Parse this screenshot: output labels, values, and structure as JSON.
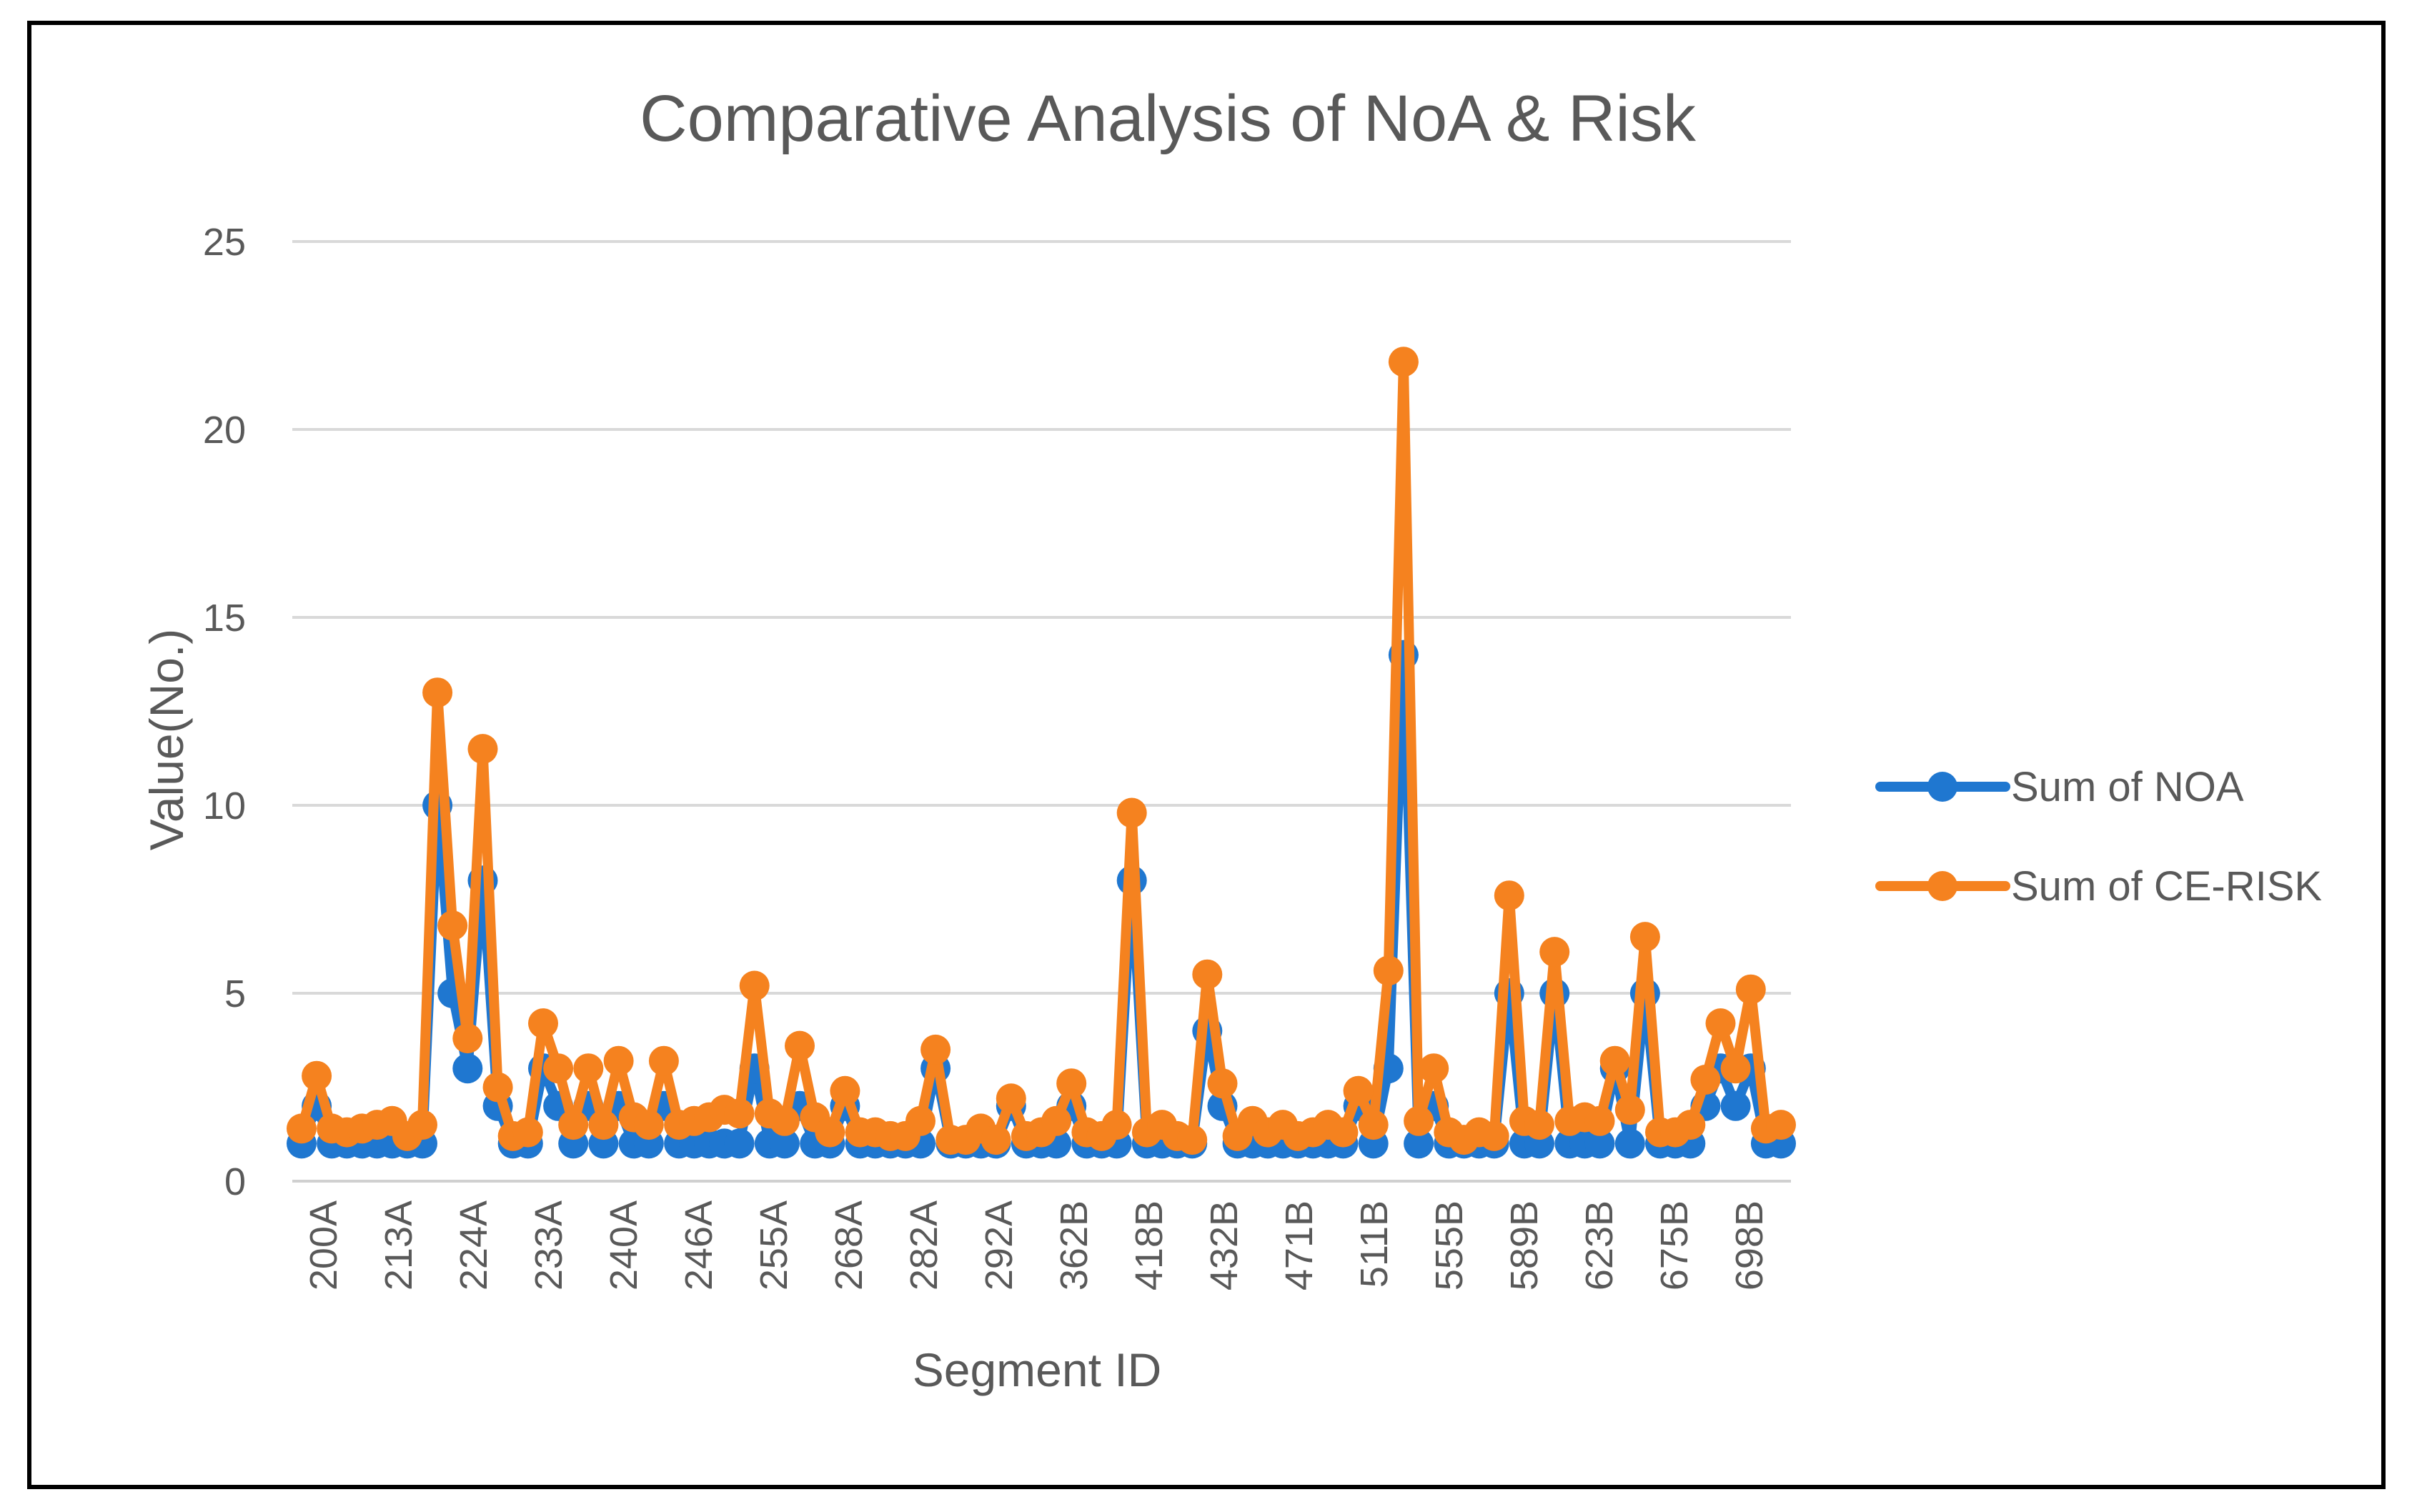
{
  "chart_data": {
    "type": "line",
    "title": "Comparative Analysis of NoA & Risk",
    "xlabel": "Segment ID",
    "ylabel": "Value(No.)",
    "ylim": [
      0,
      25
    ],
    "yticks": [
      0,
      5,
      10,
      15,
      20,
      25
    ],
    "grid": true,
    "legend_position": "right",
    "tick_labels": [
      "200A",
      "213A",
      "224A",
      "233A",
      "240A",
      "246A",
      "255A",
      "268A",
      "282A",
      "292A",
      "362B",
      "418B",
      "432B",
      "471B",
      "511B",
      "555B",
      "589B",
      "623B",
      "675B",
      "698B"
    ],
    "series": [
      {
        "name": "Sum of NOA",
        "color": "#1F77D0",
        "values": [
          1,
          2,
          1,
          1,
          1,
          1,
          1,
          1,
          1,
          10,
          5,
          3,
          8,
          2,
          1,
          1,
          3,
          2,
          1,
          2,
          1,
          2,
          1,
          1,
          2,
          1,
          1,
          1,
          1,
          1,
          3,
          1,
          1,
          2,
          1,
          1,
          2,
          1,
          1,
          1,
          1,
          1,
          3,
          1,
          1,
          1,
          1,
          2,
          1,
          1,
          1,
          2,
          1,
          1,
          1,
          8,
          1,
          1,
          1,
          1,
          4,
          2,
          1,
          1,
          1,
          1,
          1,
          1,
          1,
          1,
          2,
          1,
          3,
          14,
          1,
          2,
          1,
          1,
          1,
          1,
          5,
          1,
          1,
          5,
          1,
          1,
          1,
          3,
          1,
          5,
          1,
          1,
          1,
          2,
          3,
          2,
          3,
          1,
          1
        ]
      },
      {
        "name": "Sum of CE-RISK",
        "color": "#F5821F",
        "values": [
          1.4,
          2.8,
          1.4,
          1.3,
          1.4,
          1.5,
          1.6,
          1.2,
          1.5,
          13,
          6.8,
          3.8,
          11.5,
          2.5,
          1.2,
          1.3,
          4.2,
          3,
          1.5,
          3,
          1.5,
          3.2,
          1.7,
          1.5,
          3.2,
          1.5,
          1.6,
          1.7,
          1.9,
          1.8,
          5.2,
          1.8,
          1.6,
          3.6,
          1.7,
          1.3,
          2.4,
          1.3,
          1.3,
          1.2,
          1.2,
          1.6,
          3.5,
          1.1,
          1.1,
          1.4,
          1.1,
          2.2,
          1.2,
          1.3,
          1.6,
          2.6,
          1.3,
          1.2,
          1.5,
          9.8,
          1.3,
          1.5,
          1.2,
          1.1,
          5.5,
          2.6,
          1.2,
          1.6,
          1.3,
          1.5,
          1.2,
          1.3,
          1.5,
          1.3,
          2.4,
          1.5,
          5.6,
          21.8,
          1.6,
          3,
          1.3,
          1.1,
          1.3,
          1.2,
          7.6,
          1.6,
          1.5,
          6.1,
          1.6,
          1.7,
          1.6,
          3.2,
          1.9,
          6.5,
          1.3,
          1.3,
          1.5,
          2.7,
          4.2,
          3,
          5.1,
          1.4,
          1.5
        ]
      }
    ]
  }
}
